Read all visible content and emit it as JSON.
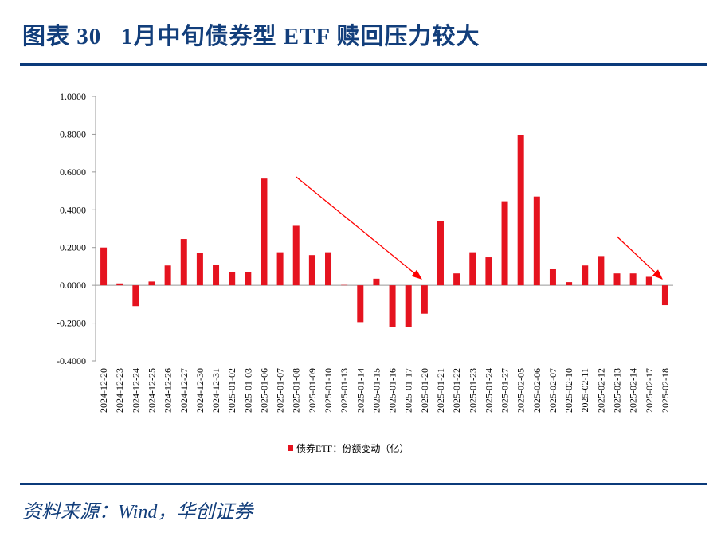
{
  "title": "图表 30   1月中旬债券型 ETF 赎回压力较大",
  "source": "资料来源：Wind，华创证券",
  "colors": {
    "bar": "#e5131f",
    "title": "#123e7b",
    "rule": "#0b3a7a",
    "arrow": "#ff0000"
  },
  "chart_data": {
    "type": "bar",
    "categories": [
      "2024-12-20",
      "2024-12-23",
      "2024-12-24",
      "2024-12-25",
      "2024-12-26",
      "2024-12-27",
      "2024-12-30",
      "2024-12-31",
      "2025-01-02",
      "2025-01-03",
      "2025-01-06",
      "2025-01-07",
      "2025-01-08",
      "2025-01-09",
      "2025-01-10",
      "2025-01-13",
      "2025-01-14",
      "2025-01-15",
      "2025-01-16",
      "2025-01-17",
      "2025-01-20",
      "2025-01-21",
      "2025-01-22",
      "2025-01-23",
      "2025-01-24",
      "2025-01-27",
      "2025-02-05",
      "2025-02-06",
      "2025-02-07",
      "2025-02-10",
      "2025-02-11",
      "2025-02-12",
      "2025-02-13",
      "2025-02-14",
      "2025-02-17",
      "2025-02-18"
    ],
    "series": [
      {
        "name": "债券ETF：份额变动（亿）",
        "values": [
          0.2,
          0.01,
          -0.11,
          0.02,
          0.105,
          0.245,
          0.17,
          0.11,
          0.07,
          0.07,
          0.565,
          0.175,
          0.315,
          0.16,
          0.175,
          0.002,
          -0.195,
          0.035,
          -0.22,
          -0.22,
          -0.15,
          0.34,
          0.063,
          0.175,
          0.148,
          0.445,
          0.797,
          0.47,
          0.085,
          0.017,
          0.105,
          0.155,
          0.063,
          0.063,
          0.045,
          -0.105
        ]
      }
    ],
    "yticks": [
      "1.0000",
      "0.8000",
      "0.6000",
      "0.4000",
      "0.2000",
      "0.0000",
      "-0.2000",
      "-0.4000"
    ],
    "ylim": [
      -0.4,
      1.0
    ],
    "grid": false,
    "legend": "bottom",
    "annotations": [
      {
        "type": "arrow",
        "from": "2025-01-08",
        "to": "2025-01-20"
      },
      {
        "type": "arrow",
        "from": "2025-02-13",
        "to": "2025-02-18"
      }
    ]
  }
}
